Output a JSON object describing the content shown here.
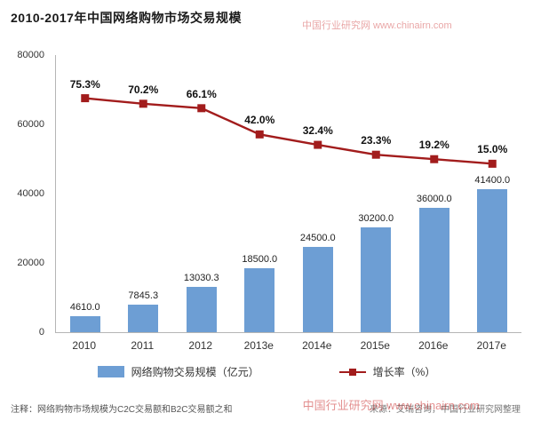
{
  "title": "2010-2017年中国网络购物市场交易规模",
  "chart_data": {
    "type": "bar",
    "categories": [
      "2010",
      "2011",
      "2012",
      "2013e",
      "2014e",
      "2015e",
      "2016e",
      "2017e"
    ],
    "series": [
      {
        "name": "网络购物交易规模（亿元）",
        "type": "bar",
        "values": [
          4610.0,
          7845.3,
          13030.3,
          18500.0,
          24500.0,
          30200.0,
          36000.0,
          41400.0
        ],
        "labels": [
          "4610.0",
          "7845.3",
          "13030.3",
          "18500.0",
          "24500.0",
          "30200.0",
          "36000.0",
          "41400.0"
        ],
        "color": "#6D9ED4"
      },
      {
        "name": "增长率（%）",
        "type": "line",
        "values": [
          75.3,
          70.2,
          66.1,
          42.0,
          32.4,
          23.3,
          19.2,
          15.0
        ],
        "labels": [
          "75.3%",
          "70.2%",
          "66.1%",
          "42.0%",
          "32.4%",
          "23.3%",
          "19.2%",
          "15.0%"
        ],
        "color": "#A21C1C"
      }
    ],
    "title": "2010-2017年中国网络购物市场交易规模",
    "xlabel": "",
    "ylabel": "",
    "y_axis": {
      "min": 0,
      "max": 80000,
      "ticks": [
        0,
        20000,
        40000,
        60000,
        80000
      ]
    },
    "line_axis_hint": {
      "min": -140,
      "max": 115
    },
    "grid": false,
    "legend_position": "bottom"
  },
  "legend": {
    "bar_label": "网络购物交易规模（亿元）",
    "line_label": "增长率（%）"
  },
  "footer": {
    "note": "注释：网络购物市场规模为C2C交易额和B2C交易额之和",
    "source": "来源：艾瑞咨询，中国行业研究网整理"
  },
  "watermark": {
    "text": "中国行业研究网 www.chinairn.com"
  }
}
